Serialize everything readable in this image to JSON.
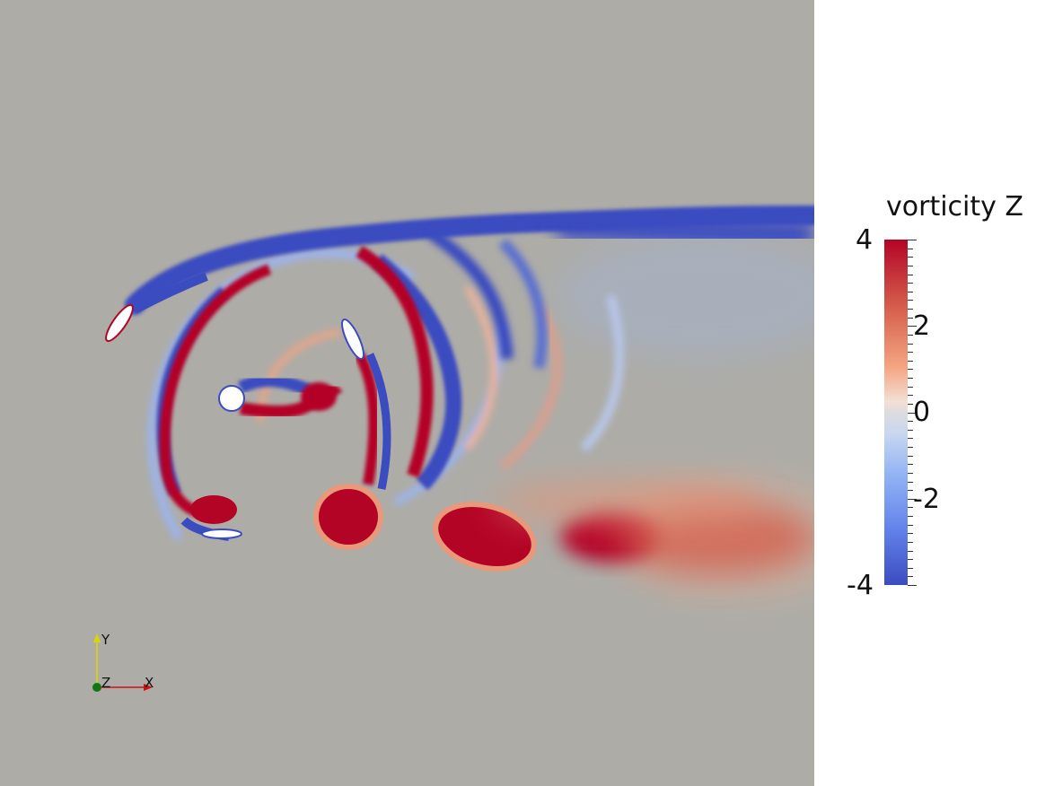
{
  "legend": {
    "title": "vorticity Z",
    "labels": [
      "4",
      "2",
      "0",
      "-2",
      "-4"
    ],
    "range": [
      -4,
      4
    ],
    "colors": {
      "max": "#b40426",
      "mid": "#dddcdc",
      "min": "#3b4cc0"
    }
  },
  "axes": {
    "x_label": "X",
    "y_label": "Y",
    "z_label": "Z",
    "x_color": "#cc1111",
    "y_color": "#d8d800",
    "z_color": "#117711"
  },
  "scene": {
    "background_color": "#adaca7"
  }
}
